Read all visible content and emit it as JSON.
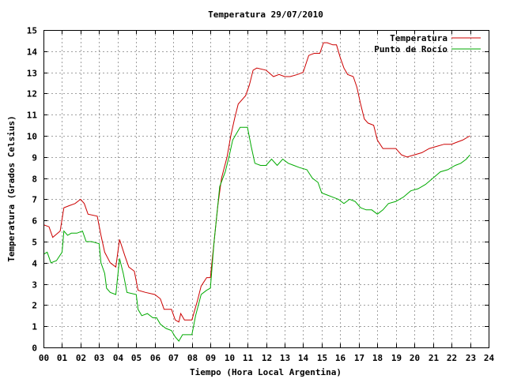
{
  "chart_data": {
    "type": "line",
    "title": "Temperatura 29/07/2010",
    "xlabel": "Tiempo (Hora Local Argentina)",
    "ylabel": "Temperatura (Grados Celsius)",
    "xlim": [
      0,
      24
    ],
    "ylim": [
      0,
      15
    ],
    "x_ticks": [
      "00",
      "01",
      "02",
      "03",
      "04",
      "05",
      "06",
      "07",
      "08",
      "09",
      "10",
      "11",
      "12",
      "13",
      "14",
      "15",
      "16",
      "17",
      "18",
      "19",
      "20",
      "21",
      "22",
      "23",
      "24"
    ],
    "y_ticks": [
      "0",
      "1",
      "2",
      "3",
      "4",
      "5",
      "6",
      "7",
      "8",
      "9",
      "10",
      "11",
      "12",
      "13",
      "14",
      "15"
    ],
    "grid": true,
    "legend_position": "top-right",
    "series": [
      {
        "name": "Temperatura",
        "color": "#cc0000",
        "points": [
          [
            0,
            5.8
          ],
          [
            0.3,
            5.7
          ],
          [
            0.5,
            5.2
          ],
          [
            0.9,
            5.5
          ],
          [
            1.1,
            6.6
          ],
          [
            1.4,
            6.7
          ],
          [
            1.7,
            6.8
          ],
          [
            2.0,
            7.0
          ],
          [
            2.2,
            6.8
          ],
          [
            2.4,
            6.3
          ],
          [
            2.9,
            6.2
          ],
          [
            3.1,
            5.3
          ],
          [
            3.3,
            4.5
          ],
          [
            3.6,
            4.0
          ],
          [
            3.9,
            3.8
          ],
          [
            4.1,
            5.1
          ],
          [
            4.4,
            4.3
          ],
          [
            4.6,
            3.8
          ],
          [
            4.9,
            3.6
          ],
          [
            5.1,
            2.7
          ],
          [
            5.5,
            2.6
          ],
          [
            6.0,
            2.5
          ],
          [
            6.3,
            2.3
          ],
          [
            6.5,
            1.8
          ],
          [
            6.9,
            1.8
          ],
          [
            7.1,
            1.3
          ],
          [
            7.3,
            1.2
          ],
          [
            7.4,
            1.6
          ],
          [
            7.6,
            1.3
          ],
          [
            8.0,
            1.3
          ],
          [
            8.3,
            2.2
          ],
          [
            8.5,
            2.9
          ],
          [
            8.8,
            3.3
          ],
          [
            9.0,
            3.3
          ],
          [
            9.2,
            5.0
          ],
          [
            9.4,
            6.7
          ],
          [
            9.6,
            8.0
          ],
          [
            9.9,
            9.0
          ],
          [
            10.1,
            10.0
          ],
          [
            10.3,
            10.8
          ],
          [
            10.5,
            11.5
          ],
          [
            10.9,
            11.9
          ],
          [
            11.1,
            12.4
          ],
          [
            11.3,
            13.1
          ],
          [
            11.5,
            13.2
          ],
          [
            12.0,
            13.1
          ],
          [
            12.4,
            12.8
          ],
          [
            12.7,
            12.9
          ],
          [
            13.0,
            12.8
          ],
          [
            13.3,
            12.8
          ],
          [
            13.7,
            12.9
          ],
          [
            14.0,
            13.0
          ],
          [
            14.3,
            13.8
          ],
          [
            14.6,
            13.9
          ],
          [
            14.9,
            13.9
          ],
          [
            15.1,
            14.4
          ],
          [
            15.3,
            14.4
          ],
          [
            15.6,
            14.3
          ],
          [
            15.8,
            14.3
          ],
          [
            16.0,
            13.7
          ],
          [
            16.2,
            13.2
          ],
          [
            16.4,
            12.9
          ],
          [
            16.7,
            12.8
          ],
          [
            16.9,
            12.3
          ],
          [
            17.1,
            11.5
          ],
          [
            17.3,
            10.8
          ],
          [
            17.5,
            10.6
          ],
          [
            17.8,
            10.5
          ],
          [
            18.0,
            9.8
          ],
          [
            18.3,
            9.4
          ],
          [
            18.6,
            9.4
          ],
          [
            19.0,
            9.4
          ],
          [
            19.3,
            9.1
          ],
          [
            19.6,
            9.0
          ],
          [
            20.0,
            9.1
          ],
          [
            20.4,
            9.2
          ],
          [
            20.8,
            9.4
          ],
          [
            21.2,
            9.5
          ],
          [
            21.6,
            9.6
          ],
          [
            22.0,
            9.6
          ],
          [
            22.3,
            9.7
          ],
          [
            22.6,
            9.8
          ],
          [
            23.0,
            10.0
          ]
        ]
      },
      {
        "name": "Punto de Rocío",
        "color": "#00aa00",
        "points": [
          [
            0,
            4.4
          ],
          [
            0.2,
            4.5
          ],
          [
            0.4,
            4.0
          ],
          [
            0.7,
            4.1
          ],
          [
            1.0,
            4.5
          ],
          [
            1.1,
            5.5
          ],
          [
            1.3,
            5.3
          ],
          [
            1.5,
            5.4
          ],
          [
            1.8,
            5.4
          ],
          [
            2.1,
            5.5
          ],
          [
            2.3,
            5.0
          ],
          [
            2.6,
            5.0
          ],
          [
            3.0,
            4.9
          ],
          [
            3.1,
            4.0
          ],
          [
            3.3,
            3.5
          ],
          [
            3.4,
            2.8
          ],
          [
            3.6,
            2.6
          ],
          [
            3.9,
            2.5
          ],
          [
            4.1,
            4.2
          ],
          [
            4.3,
            3.5
          ],
          [
            4.5,
            2.6
          ],
          [
            5.0,
            2.5
          ],
          [
            5.1,
            1.8
          ],
          [
            5.3,
            1.5
          ],
          [
            5.6,
            1.6
          ],
          [
            5.9,
            1.4
          ],
          [
            6.1,
            1.4
          ],
          [
            6.3,
            1.1
          ],
          [
            6.6,
            0.9
          ],
          [
            6.9,
            0.8
          ],
          [
            7.1,
            0.5
          ],
          [
            7.3,
            0.3
          ],
          [
            7.5,
            0.6
          ],
          [
            7.8,
            0.6
          ],
          [
            8.0,
            0.6
          ],
          [
            8.2,
            1.5
          ],
          [
            8.5,
            2.5
          ],
          [
            8.8,
            2.7
          ],
          [
            9.0,
            2.8
          ],
          [
            9.2,
            5.0
          ],
          [
            9.5,
            7.6
          ],
          [
            9.8,
            8.3
          ],
          [
            10.0,
            9.0
          ],
          [
            10.2,
            9.8
          ],
          [
            10.4,
            10.1
          ],
          [
            10.6,
            10.4
          ],
          [
            11.0,
            10.4
          ],
          [
            11.2,
            9.5
          ],
          [
            11.4,
            8.7
          ],
          [
            11.7,
            8.6
          ],
          [
            12.0,
            8.6
          ],
          [
            12.3,
            8.9
          ],
          [
            12.6,
            8.6
          ],
          [
            12.9,
            8.9
          ],
          [
            13.2,
            8.7
          ],
          [
            13.5,
            8.6
          ],
          [
            13.8,
            8.5
          ],
          [
            14.2,
            8.4
          ],
          [
            14.5,
            8.0
          ],
          [
            14.8,
            7.8
          ],
          [
            15.0,
            7.3
          ],
          [
            15.3,
            7.2
          ],
          [
            15.6,
            7.1
          ],
          [
            15.9,
            7.0
          ],
          [
            16.2,
            6.8
          ],
          [
            16.5,
            7.0
          ],
          [
            16.8,
            6.9
          ],
          [
            17.1,
            6.6
          ],
          [
            17.4,
            6.5
          ],
          [
            17.7,
            6.5
          ],
          [
            18.0,
            6.3
          ],
          [
            18.3,
            6.5
          ],
          [
            18.6,
            6.8
          ],
          [
            19.0,
            6.9
          ],
          [
            19.4,
            7.1
          ],
          [
            19.8,
            7.4
          ],
          [
            20.2,
            7.5
          ],
          [
            20.6,
            7.7
          ],
          [
            21.0,
            8.0
          ],
          [
            21.4,
            8.3
          ],
          [
            21.8,
            8.4
          ],
          [
            22.2,
            8.6
          ],
          [
            22.5,
            8.7
          ],
          [
            22.8,
            8.9
          ],
          [
            23.0,
            9.1
          ]
        ]
      }
    ]
  }
}
